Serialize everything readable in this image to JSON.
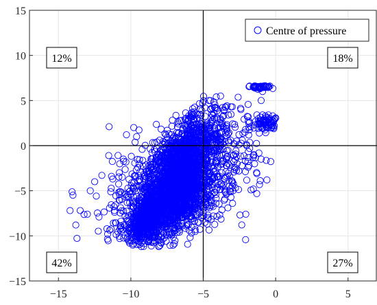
{
  "chart_data": {
    "type": "scatter",
    "title": "",
    "xlabel": "",
    "ylabel": "",
    "xlim": [
      -17,
      7
    ],
    "ylim": [
      -15,
      15
    ],
    "x_ticks": [
      -15,
      -10,
      -5,
      0,
      5
    ],
    "y_ticks": [
      -15,
      -10,
      -5,
      0,
      5,
      10,
      15
    ],
    "grid": true,
    "reference_lines": {
      "x": -5,
      "y": 0
    },
    "legend": {
      "entry": "Centre of pressure",
      "placement": "top-right"
    },
    "marker_color": "#0000ff",
    "quadrant_labels": {
      "top_left": "12%",
      "top_right": "18%",
      "bottom_left": "42%",
      "bottom_right": "27%"
    },
    "series": [
      {
        "name": "Centre of pressure",
        "marker": "open-circle",
        "clusters": [
          {
            "x": -7.0,
            "y": -4.0,
            "sx": 1.3,
            "sy": 3.0,
            "rho": 0.55,
            "n": 1900
          },
          {
            "x": -6.2,
            "y": -6.0,
            "sx": 1.4,
            "sy": 2.0,
            "rho": 0.5,
            "n": 500
          },
          {
            "x": -9.0,
            "y": -8.5,
            "sx": 0.8,
            "sy": 1.2,
            "rho": 0.3,
            "n": 350
          },
          {
            "x": -5.5,
            "y": 0.5,
            "sx": 1.4,
            "sy": 1.8,
            "rho": 0.5,
            "n": 350
          },
          {
            "x": -10.5,
            "y": -5.0,
            "sx": 1.2,
            "sy": 2.5,
            "rho": 0.4,
            "n": 90
          },
          {
            "x": -3.2,
            "y": -2.5,
            "sx": 1.1,
            "sy": 2.6,
            "rho": 0.3,
            "n": 130
          }
        ],
        "outliers": [
          [
            -11.5,
            2.1
          ],
          [
            -14.0,
            -5.5
          ],
          [
            -14.2,
            -7.2
          ],
          [
            -13.8,
            -8.8
          ],
          [
            -13.0,
            -7.6
          ],
          [
            -12.5,
            -4.0
          ],
          [
            -12.8,
            -5.0
          ],
          [
            -12.0,
            -3.3
          ],
          [
            -11.6,
            -9.8
          ],
          [
            -12.2,
            -7.9
          ],
          [
            -10.3,
            1.2
          ],
          [
            -9.6,
            1.0
          ],
          [
            -9.8,
            2.0
          ],
          [
            -2.3,
            0.6
          ],
          [
            -2.0,
            0.0
          ],
          [
            -1.5,
            -1.0
          ],
          [
            -1.0,
            -1.5
          ],
          [
            -1.9,
            -2.4
          ],
          [
            -0.6,
            -3.8
          ],
          [
            -1.3,
            -3.1
          ],
          [
            -4.1,
            5.4
          ],
          [
            -3.8,
            5.5
          ],
          [
            -4.6,
            5.0
          ],
          [
            -3.0,
            4.3
          ],
          [
            -2.4,
            4.0
          ],
          [
            -1.0,
            5.0
          ]
        ],
        "blobs": [
          {
            "x": -1.1,
            "y": 6.5,
            "sx": 0.35,
            "sy": 0.08,
            "n": 45
          },
          {
            "x": -0.75,
            "y": 2.6,
            "sx": 0.45,
            "sy": 0.35,
            "n": 60
          }
        ],
        "blob_arc": [
          [
            -1.9,
            3.2
          ],
          [
            -1.8,
            2.6
          ],
          [
            -1.7,
            2.1
          ],
          [
            -1.5,
            1.95
          ],
          [
            -1.2,
            1.9
          ],
          [
            -0.9,
            1.95
          ],
          [
            -0.6,
            2.0
          ],
          [
            -0.3,
            2.2
          ],
          [
            -0.2,
            2.8
          ],
          [
            -0.2,
            3.3
          ],
          [
            -0.5,
            3.4
          ],
          [
            -0.9,
            3.4
          ],
          [
            -1.3,
            3.4
          ],
          [
            -0.9,
            6.0
          ],
          [
            -1.8,
            6.6
          ],
          [
            -0.4,
            6.6
          ]
        ]
      }
    ]
  }
}
